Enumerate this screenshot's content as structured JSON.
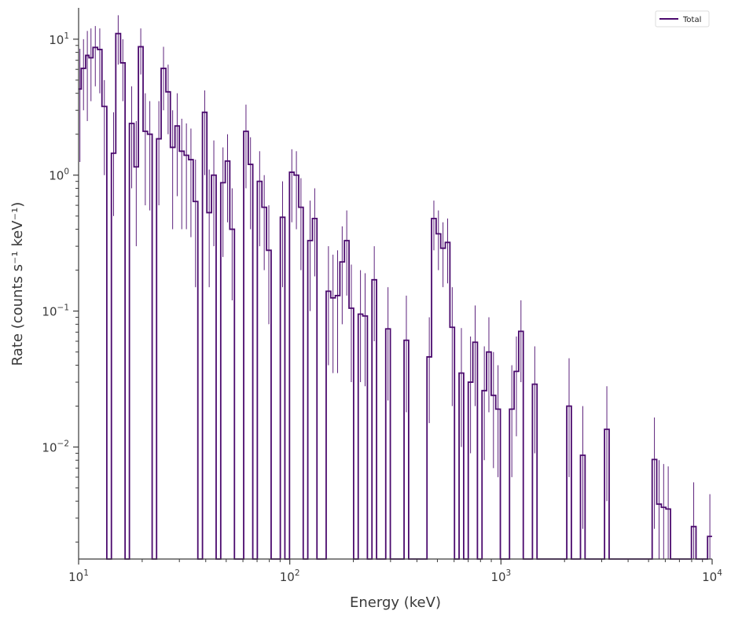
{
  "chart_data": {
    "type": "line",
    "style": "step-histogram-with-error-bars",
    "xscale": "log",
    "yscale": "log",
    "xlim": [
      10,
      10000
    ],
    "ylim": [
      0.0015,
      17
    ],
    "xlabel": "Energy (keV)",
    "ylabel": "Rate (counts s⁻¹ keV⁻¹)",
    "x_ticks": [
      {
        "value": 10,
        "base": "10",
        "exp": "1"
      },
      {
        "value": 100,
        "base": "10",
        "exp": "2"
      },
      {
        "value": 1000,
        "base": "10",
        "exp": "3"
      },
      {
        "value": 10000,
        "base": "10",
        "exp": "4"
      }
    ],
    "y_ticks": [
      {
        "value": 10,
        "base": "10",
        "exp": "1"
      },
      {
        "value": 1,
        "base": "10",
        "exp": "0"
      },
      {
        "value": 0.1,
        "base": "10",
        "exp": "−1"
      },
      {
        "value": 0.01,
        "base": "10",
        "exp": "−2"
      }
    ],
    "legend": {
      "position": "top-right",
      "entries": [
        "Total"
      ]
    },
    "grid": false,
    "series": [
      {
        "name": "Total",
        "color": "#4b0a6e",
        "bins": [
          {
            "lo": 10.0,
            "hi": 10.3,
            "y": 4.3,
            "err": [
              1.25,
              8.5
            ]
          },
          {
            "lo": 10.3,
            "hi": 10.8,
            "y": 6.1,
            "err": [
              3.0,
              10.0
            ]
          },
          {
            "lo": 10.8,
            "hi": 11.2,
            "y": 7.6,
            "err": [
              2.5,
              11.5
            ]
          },
          {
            "lo": 11.2,
            "hi": 11.7,
            "y": 7.3,
            "err": [
              3.5,
              12.0
            ]
          },
          {
            "lo": 11.7,
            "hi": 12.3,
            "y": 8.7,
            "err": [
              4.5,
              12.5
            ]
          },
          {
            "lo": 12.3,
            "hi": 12.9,
            "y": 8.4,
            "err": [
              4.0,
              12.0
            ]
          },
          {
            "lo": 12.9,
            "hi": 13.6,
            "y": 3.2,
            "err": [
              1.0,
              5.0
            ]
          },
          {
            "lo": 13.6,
            "hi": 14.3,
            "y": 0.0
          },
          {
            "lo": 14.3,
            "hi": 15.0,
            "y": 1.45,
            "err": [
              0.5,
              2.9
            ]
          },
          {
            "lo": 15.0,
            "hi": 15.8,
            "y": 11.0,
            "err": [
              6.5,
              15.0
            ]
          },
          {
            "lo": 15.8,
            "hi": 16.6,
            "y": 6.7,
            "err": [
              3.5,
              10.0
            ]
          },
          {
            "lo": 16.6,
            "hi": 17.4,
            "y": 0.0
          },
          {
            "lo": 17.4,
            "hi": 18.3,
            "y": 2.4,
            "err": [
              0.8,
              4.5
            ]
          },
          {
            "lo": 18.3,
            "hi": 19.2,
            "y": 1.15,
            "err": [
              0.3,
              2.5
            ]
          },
          {
            "lo": 19.2,
            "hi": 20.2,
            "y": 8.8,
            "err": [
              5.5,
              12.0
            ]
          },
          {
            "lo": 20.2,
            "hi": 21.2,
            "y": 2.1,
            "err": [
              0.6,
              4.0
            ]
          },
          {
            "lo": 21.2,
            "hi": 22.3,
            "y": 2.0,
            "err": [
              0.55,
              3.5
            ]
          },
          {
            "lo": 22.3,
            "hi": 23.4,
            "y": 0.0
          },
          {
            "lo": 23.4,
            "hi": 24.6,
            "y": 1.85,
            "err": [
              0.6,
              3.5
            ]
          },
          {
            "lo": 24.6,
            "hi": 25.9,
            "y": 6.1,
            "err": [
              3.0,
              8.8
            ]
          },
          {
            "lo": 25.9,
            "hi": 27.2,
            "y": 4.1,
            "err": [
              2.0,
              6.5
            ]
          },
          {
            "lo": 27.2,
            "hi": 28.6,
            "y": 1.6,
            "err": [
              0.4,
              3.0
            ]
          },
          {
            "lo": 28.6,
            "hi": 30.0,
            "y": 2.3,
            "err": [
              0.7,
              4.0
            ]
          },
          {
            "lo": 30.0,
            "hi": 31.6,
            "y": 1.5,
            "err": [
              0.4,
              2.6
            ]
          },
          {
            "lo": 31.6,
            "hi": 33.2,
            "y": 1.4,
            "err": [
              0.4,
              2.4
            ]
          },
          {
            "lo": 33.2,
            "hi": 34.9,
            "y": 1.3,
            "err": [
              0.35,
              2.2
            ]
          },
          {
            "lo": 34.9,
            "hi": 36.7,
            "y": 0.64,
            "err": [
              0.15,
              1.3
            ]
          },
          {
            "lo": 36.7,
            "hi": 38.6,
            "y": 0.0
          },
          {
            "lo": 38.6,
            "hi": 40.5,
            "y": 2.9,
            "err": [
              1.0,
              4.2
            ]
          },
          {
            "lo": 40.5,
            "hi": 42.6,
            "y": 0.53,
            "err": [
              0.15,
              1.1
            ]
          },
          {
            "lo": 42.6,
            "hi": 44.8,
            "y": 1.0,
            "err": [
              0.3,
              1.8
            ]
          },
          {
            "lo": 44.8,
            "hi": 47.1,
            "y": 0.0
          },
          {
            "lo": 47.1,
            "hi": 49.5,
            "y": 0.88,
            "err": [
              0.25,
              1.6
            ]
          },
          {
            "lo": 49.5,
            "hi": 52.0,
            "y": 1.27,
            "err": [
              0.45,
              2.0
            ]
          },
          {
            "lo": 52.0,
            "hi": 54.7,
            "y": 0.4,
            "err": [
              0.12,
              0.8
            ]
          },
          {
            "lo": 54.7,
            "hi": 57.5,
            "y": 0.0
          },
          {
            "lo": 57.5,
            "hi": 60.5,
            "y": 0.0
          },
          {
            "lo": 60.5,
            "hi": 63.6,
            "y": 2.1,
            "err": [
              0.8,
              3.3
            ]
          },
          {
            "lo": 63.6,
            "hi": 66.8,
            "y": 1.2,
            "err": [
              0.4,
              1.9
            ]
          },
          {
            "lo": 66.8,
            "hi": 70.2,
            "y": 0.0
          },
          {
            "lo": 70.2,
            "hi": 73.8,
            "y": 0.9,
            "err": [
              0.3,
              1.5
            ]
          },
          {
            "lo": 73.8,
            "hi": 77.6,
            "y": 0.58,
            "err": [
              0.2,
              1.0
            ]
          },
          {
            "lo": 77.6,
            "hi": 81.6,
            "y": 0.28,
            "err": [
              0.08,
              0.6
            ]
          },
          {
            "lo": 81.6,
            "hi": 85.8,
            "y": 0.0
          },
          {
            "lo": 85.8,
            "hi": 90.2,
            "y": 0.0
          },
          {
            "lo": 90.2,
            "hi": 94.8,
            "y": 0.49,
            "err": [
              0.15,
              0.9
            ]
          },
          {
            "lo": 94.8,
            "hi": 99.7,
            "y": 0.0
          },
          {
            "lo": 99.7,
            "hi": 104.8,
            "y": 1.05,
            "err": [
              0.45,
              1.55
            ]
          },
          {
            "lo": 104.8,
            "hi": 110.2,
            "y": 1.0,
            "err": [
              0.4,
              1.5
            ]
          },
          {
            "lo": 110.2,
            "hi": 115.8,
            "y": 0.58,
            "err": [
              0.2,
              0.95
            ]
          },
          {
            "lo": 115.8,
            "hi": 121.7,
            "y": 0.0
          },
          {
            "lo": 121.7,
            "hi": 128.0,
            "y": 0.33,
            "err": [
              0.1,
              0.65
            ]
          },
          {
            "lo": 128.0,
            "hi": 134.5,
            "y": 0.48,
            "err": [
              0.18,
              0.8
            ]
          },
          {
            "lo": 134.5,
            "hi": 141.4,
            "y": 0.0
          },
          {
            "lo": 141.4,
            "hi": 148.7,
            "y": 0.0
          },
          {
            "lo": 148.7,
            "hi": 156.3,
            "y": 0.14,
            "err": [
              0.04,
              0.3
            ]
          },
          {
            "lo": 156.3,
            "hi": 164.3,
            "y": 0.125,
            "err": [
              0.035,
              0.26
            ]
          },
          {
            "lo": 164.3,
            "hi": 172.7,
            "y": 0.13,
            "err": [
              0.035,
              0.28
            ]
          },
          {
            "lo": 172.7,
            "hi": 181.5,
            "y": 0.23,
            "err": [
              0.08,
              0.42
            ]
          },
          {
            "lo": 181.5,
            "hi": 190.8,
            "y": 0.33,
            "err": [
              0.13,
              0.55
            ]
          },
          {
            "lo": 190.8,
            "hi": 200.6,
            "y": 0.105,
            "err": [
              0.03,
              0.22
            ]
          },
          {
            "lo": 200.6,
            "hi": 210.9,
            "y": 0.0
          },
          {
            "lo": 210.9,
            "hi": 221.7,
            "y": 0.095,
            "err": [
              0.03,
              0.2
            ]
          },
          {
            "lo": 221.7,
            "hi": 233.1,
            "y": 0.092,
            "err": [
              0.028,
              0.19
            ]
          },
          {
            "lo": 233.1,
            "hi": 245.0,
            "y": 0.0
          },
          {
            "lo": 245.0,
            "hi": 257.6,
            "y": 0.17,
            "err": [
              0.06,
              0.3
            ]
          },
          {
            "lo": 257.6,
            "hi": 270.8,
            "y": 0.0
          },
          {
            "lo": 270.8,
            "hi": 284.7,
            "y": 0.0
          },
          {
            "lo": 284.7,
            "hi": 299.3,
            "y": 0.074,
            "err": [
              0.022,
              0.15
            ]
          },
          {
            "lo": 299.3,
            "hi": 314.6,
            "y": 0.0
          },
          {
            "lo": 314.6,
            "hi": 330.7,
            "y": 0.0
          },
          {
            "lo": 330.7,
            "hi": 347.7,
            "y": 0.0
          },
          {
            "lo": 347.7,
            "hi": 365.5,
            "y": 0.061,
            "err": [
              0.018,
              0.13
            ]
          },
          {
            "lo": 365.5,
            "hi": 384.2,
            "y": 0.0
          },
          {
            "lo": 384.2,
            "hi": 403.9,
            "y": 0.0
          },
          {
            "lo": 403.9,
            "hi": 424.6,
            "y": 0.0
          },
          {
            "lo": 424.6,
            "hi": 446.4,
            "y": 0.0
          },
          {
            "lo": 446.4,
            "hi": 469.3,
            "y": 0.046,
            "err": [
              0.015,
              0.09
            ]
          },
          {
            "lo": 469.3,
            "hi": 493.3,
            "y": 0.48,
            "err": [
              0.28,
              0.65
            ]
          },
          {
            "lo": 493.3,
            "hi": 518.6,
            "y": 0.37,
            "err": [
              0.2,
              0.55
            ]
          },
          {
            "lo": 518.6,
            "hi": 545.2,
            "y": 0.29,
            "err": [
              0.15,
              0.45
            ]
          },
          {
            "lo": 545.2,
            "hi": 573.2,
            "y": 0.32,
            "err": [
              0.16,
              0.48
            ]
          },
          {
            "lo": 573.2,
            "hi": 602.6,
            "y": 0.076,
            "err": [
              0.02,
              0.15
            ]
          },
          {
            "lo": 602.6,
            "hi": 633.5,
            "y": 0.0
          },
          {
            "lo": 633.5,
            "hi": 666.0,
            "y": 0.035,
            "err": [
              0.01,
              0.075
            ]
          },
          {
            "lo": 666.0,
            "hi": 700.1,
            "y": 0.0
          },
          {
            "lo": 700.1,
            "hi": 736.0,
            "y": 0.03,
            "err": [
              0.009,
              0.065
            ]
          },
          {
            "lo": 736.0,
            "hi": 773.7,
            "y": 0.059,
            "err": [
              0.02,
              0.11
            ]
          },
          {
            "lo": 773.7,
            "hi": 813.4,
            "y": 0.0
          },
          {
            "lo": 813.4,
            "hi": 855.1,
            "y": 0.026,
            "err": [
              0.008,
              0.055
            ]
          },
          {
            "lo": 855.1,
            "hi": 898.9,
            "y": 0.05,
            "err": [
              0.018,
              0.09
            ]
          },
          {
            "lo": 898.9,
            "hi": 945.0,
            "y": 0.024,
            "err": [
              0.007,
              0.05
            ]
          },
          {
            "lo": 945.0,
            "hi": 993.4,
            "y": 0.019,
            "err": [
              0.006,
              0.04
            ]
          },
          {
            "lo": 993.4,
            "hi": 1044.3,
            "y": 0.0
          },
          {
            "lo": 1044.3,
            "hi": 1097.9,
            "y": 0.0
          },
          {
            "lo": 1097.9,
            "hi": 1154.2,
            "y": 0.019,
            "err": [
              0.006,
              0.04
            ]
          },
          {
            "lo": 1154.2,
            "hi": 1213.3,
            "y": 0.036,
            "err": [
              0.012,
              0.065
            ]
          },
          {
            "lo": 1213.3,
            "hi": 1275.5,
            "y": 0.071,
            "err": [
              0.03,
              0.12
            ]
          },
          {
            "lo": 1275.5,
            "hi": 1340.9,
            "y": 0.0
          },
          {
            "lo": 1340.9,
            "hi": 1409.6,
            "y": 0.0
          },
          {
            "lo": 1409.6,
            "hi": 1481.9,
            "y": 0.029,
            "err": [
              0.009,
              0.055
            ]
          },
          {
            "lo": 1481.9,
            "hi": 1557.9,
            "y": 0.0
          },
          {
            "lo": 1557.9,
            "hi": 2050.0,
            "y": 0.0
          },
          {
            "lo": 2050.0,
            "hi": 2155.0,
            "y": 0.02,
            "err": [
              0.006,
              0.045
            ]
          },
          {
            "lo": 2155.0,
            "hi": 2380.0,
            "y": 0.0
          },
          {
            "lo": 2380.0,
            "hi": 2502.0,
            "y": 0.0087,
            "err": [
              0.0025,
              0.02
            ]
          },
          {
            "lo": 2502.0,
            "hi": 3094.0,
            "y": 0.0
          },
          {
            "lo": 3094.0,
            "hi": 3253.0,
            "y": 0.0135,
            "err": [
              0.004,
              0.028
            ]
          },
          {
            "lo": 3253.0,
            "hi": 5200.0,
            "y": 0.0
          },
          {
            "lo": 5200.0,
            "hi": 5467.0,
            "y": 0.0081,
            "err": [
              0.0025,
              0.0165
            ]
          },
          {
            "lo": 5467.0,
            "hi": 5747.0,
            "y": 0.0038,
            "err": [
              0.0015,
              0.008
            ]
          },
          {
            "lo": 5747.0,
            "hi": 6041.0,
            "y": 0.0036,
            "err": [
              0.0014,
              0.0075
            ]
          },
          {
            "lo": 6041.0,
            "hi": 6351.0,
            "y": 0.0035,
            "err": [
              0.0013,
              0.0072
            ]
          },
          {
            "lo": 6351.0,
            "hi": 7980.0,
            "y": 0.0
          },
          {
            "lo": 7980.0,
            "hi": 8389.0,
            "y": 0.0026,
            "err": [
              0.0009,
              0.0055
            ]
          },
          {
            "lo": 8389.0,
            "hi": 9515.0,
            "y": 0.0
          },
          {
            "lo": 9515.0,
            "hi": 10000.0,
            "y": 0.0022,
            "err": [
              0.0008,
              0.0045
            ]
          }
        ]
      }
    ]
  }
}
